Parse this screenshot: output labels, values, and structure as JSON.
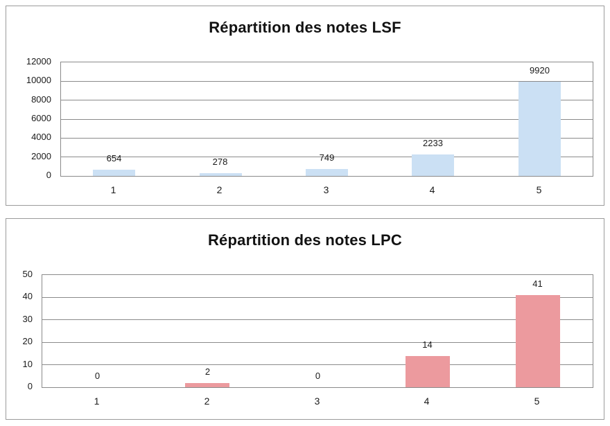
{
  "page": {
    "background_color": "#ffffff",
    "chart_border_color": "#9b9b9b"
  },
  "chart_data": [
    {
      "type": "bar",
      "title": "Répartition des notes LSF",
      "categories": [
        "1",
        "2",
        "3",
        "4",
        "5"
      ],
      "values": [
        654,
        278,
        749,
        2233,
        9920
      ],
      "data_labels": [
        "654",
        "278",
        "749",
        "2233",
        "9920"
      ],
      "xlabel": "",
      "ylabel": "",
      "ylim": [
        0,
        12000
      ],
      "yticks": [
        "0",
        "2000",
        "4000",
        "6000",
        "8000",
        "10000",
        "12000"
      ],
      "ytick_values": [
        0,
        2000,
        4000,
        6000,
        8000,
        10000,
        12000
      ],
      "grid": true,
      "legend": "none",
      "bar_color": "#CBE0F4",
      "axis_color": "#8A8A8A",
      "text_color": "#1A1A1A"
    },
    {
      "type": "bar",
      "title": "Répartition des notes LPC",
      "categories": [
        "1",
        "2",
        "3",
        "4",
        "5"
      ],
      "values": [
        0,
        2,
        0,
        14,
        41
      ],
      "data_labels": [
        "0",
        "2",
        "0",
        "14",
        "41"
      ],
      "xlabel": "",
      "ylabel": "",
      "ylim": [
        0,
        50
      ],
      "yticks": [
        "0",
        "10",
        "20",
        "30",
        "40",
        "50"
      ],
      "ytick_values": [
        0,
        10,
        20,
        30,
        40,
        50
      ],
      "grid": true,
      "legend": "none",
      "bar_color": "#EC9A9E",
      "axis_color": "#8A8A8A",
      "text_color": "#1A1A1A"
    }
  ]
}
